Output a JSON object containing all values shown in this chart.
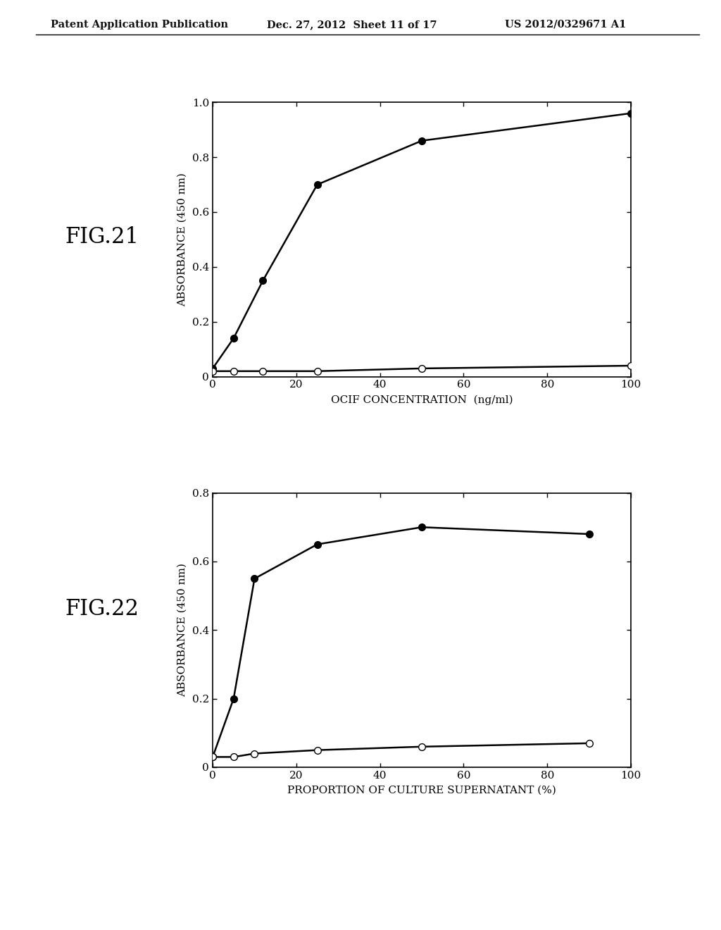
{
  "header_left": "Patent Application Publication",
  "header_mid": "Dec. 27, 2012  Sheet 11 of 17",
  "header_right": "US 2012/0329671 A1",
  "fig21": {
    "label": "FIG.21",
    "xlabel": "OCIF CONCENTRATION  (ng/ml)",
    "ylabel": "ABSORBANCE (450 nm)",
    "xlim": [
      0,
      100
    ],
    "ylim": [
      0,
      1.0
    ],
    "xticks": [
      0,
      20,
      40,
      60,
      80,
      100
    ],
    "yticks": [
      0,
      0.2,
      0.4,
      0.6,
      0.8,
      1.0
    ],
    "ytick_labels": [
      "0",
      "0.2",
      "0.4",
      "0.6",
      "0.8",
      "1.0"
    ],
    "filled_x": [
      0,
      5,
      12,
      25,
      50,
      100
    ],
    "filled_y": [
      0.03,
      0.14,
      0.35,
      0.7,
      0.86,
      0.96
    ],
    "open_x": [
      0,
      5,
      12,
      25,
      50,
      100
    ],
    "open_y": [
      0.02,
      0.02,
      0.02,
      0.02,
      0.03,
      0.04
    ]
  },
  "fig22": {
    "label": "FIG.22",
    "xlabel": "PROPORTION OF CULTURE SUPERNATANT (%)",
    "ylabel": "ABSORBANCE (450 nm)",
    "xlim": [
      0,
      100
    ],
    "ylim": [
      0,
      0.8
    ],
    "xticks": [
      0,
      20,
      40,
      60,
      80,
      100
    ],
    "yticks": [
      0,
      0.2,
      0.4,
      0.6,
      0.8
    ],
    "ytick_labels": [
      "0",
      "0.2",
      "0.4",
      "0.6",
      "0.8"
    ],
    "filled_x": [
      0,
      5,
      10,
      25,
      50,
      90
    ],
    "filled_y": [
      0.03,
      0.2,
      0.55,
      0.65,
      0.7,
      0.68
    ],
    "open_x": [
      0,
      5,
      10,
      25,
      50,
      90
    ],
    "open_y": [
      0.03,
      0.03,
      0.04,
      0.05,
      0.06,
      0.07
    ]
  },
  "background_color": "#ffffff",
  "line_color": "#000000",
  "text_color": "#000000"
}
